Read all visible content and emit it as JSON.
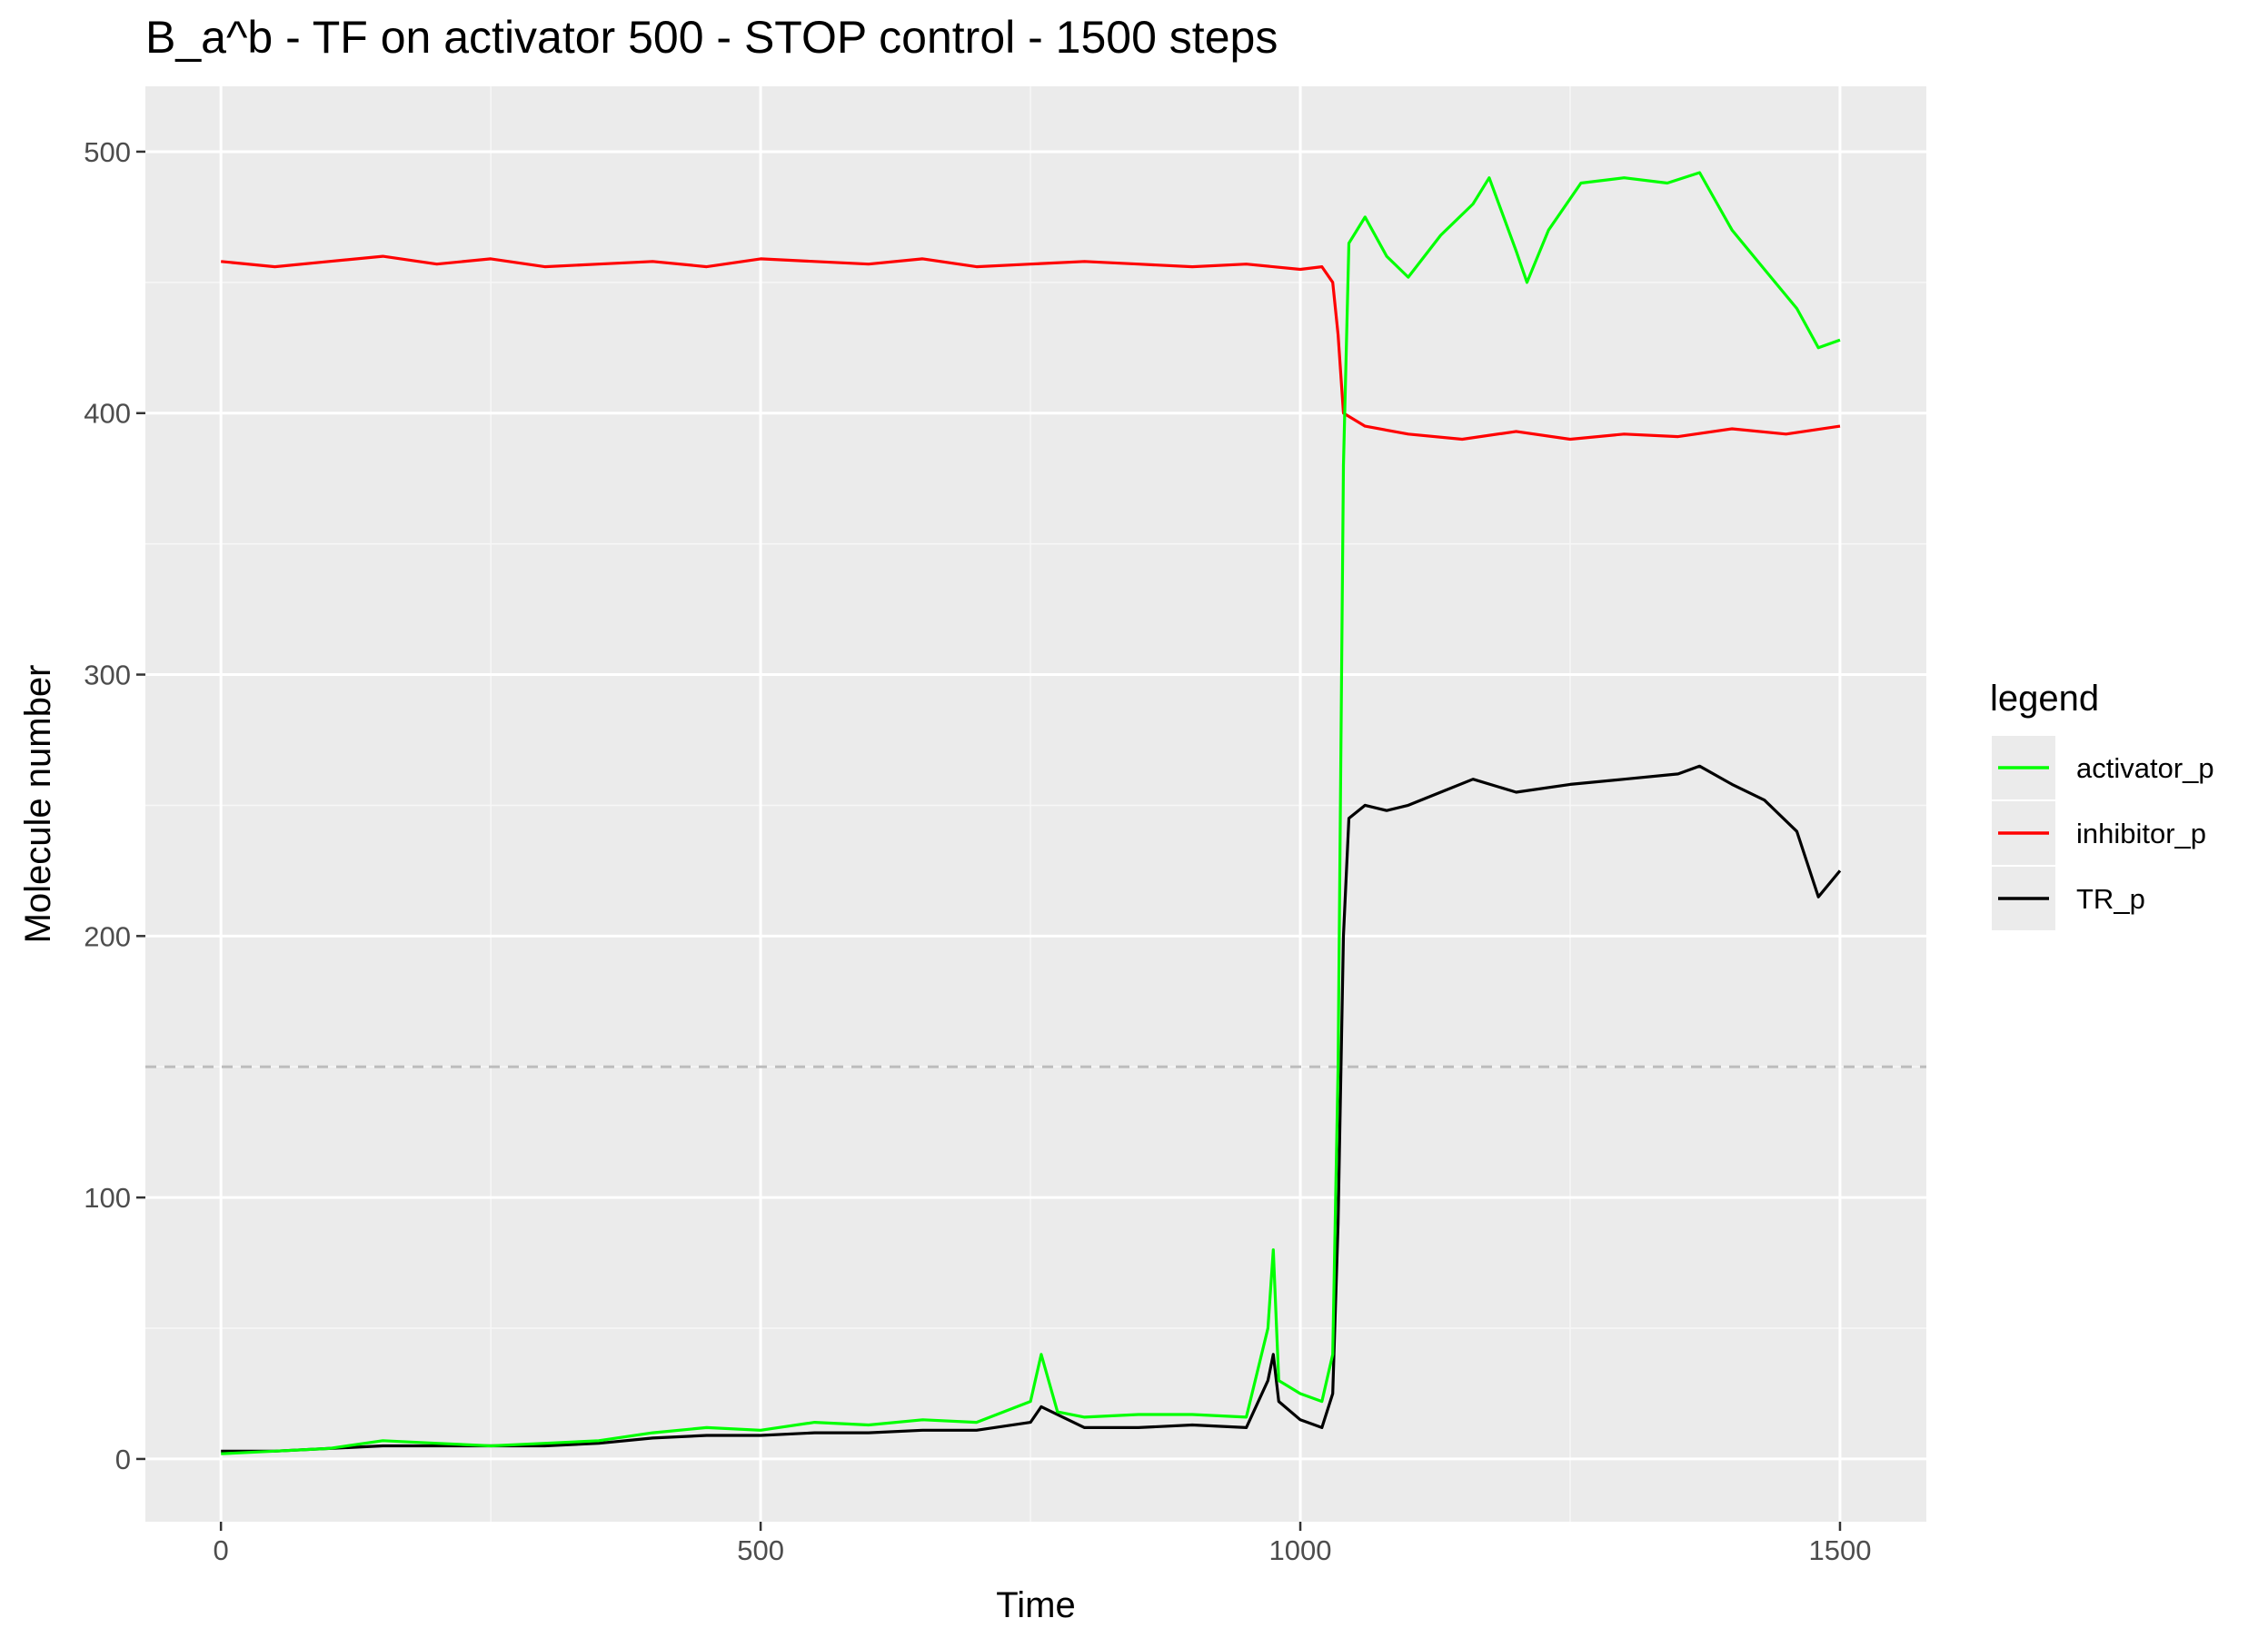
{
  "chart_data": {
    "type": "line",
    "title": "B_a^b - TF on activator 500 - STOP control - 1500 steps",
    "xlabel": "Time",
    "ylabel": "Molecule number",
    "xlim": [
      -70,
      1580
    ],
    "ylim": [
      -24,
      525
    ],
    "x_ticks": [
      0,
      500,
      1000,
      1500
    ],
    "x_tick_labels": [
      "0",
      "500",
      "1000",
      "1500"
    ],
    "y_ticks": [
      0,
      100,
      200,
      300,
      400,
      500
    ],
    "y_tick_labels": [
      "0",
      "100",
      "200",
      "300",
      "400",
      "500"
    ],
    "grid": true,
    "reference_line": {
      "y": 150,
      "style": "dashed",
      "color": "#bdbdbd"
    },
    "legend": {
      "title": "legend",
      "position": "right",
      "entries": [
        {
          "label": "activator_p",
          "color": "#00ff00"
        },
        {
          "label": "inhibitor_p",
          "color": "#ff0000"
        },
        {
          "label": "TR_p",
          "color": "#000000"
        }
      ]
    },
    "series": [
      {
        "name": "activator_p",
        "color": "#00ff00",
        "x": [
          0,
          50,
          100,
          150,
          200,
          250,
          300,
          350,
          400,
          450,
          500,
          550,
          600,
          650,
          700,
          750,
          760,
          775,
          800,
          850,
          900,
          950,
          970,
          975,
          980,
          1000,
          1020,
          1030,
          1035,
          1040,
          1045,
          1060,
          1080,
          1100,
          1130,
          1160,
          1175,
          1200,
          1210,
          1230,
          1260,
          1300,
          1340,
          1370,
          1400,
          1430,
          1460,
          1480,
          1500
        ],
        "y": [
          2,
          3,
          4,
          7,
          6,
          5,
          6,
          7,
          10,
          12,
          11,
          14,
          13,
          15,
          14,
          22,
          40,
          18,
          16,
          17,
          17,
          16,
          50,
          80,
          30,
          25,
          22,
          40,
          150,
          380,
          465,
          475,
          460,
          452,
          468,
          480,
          490,
          462,
          450,
          470,
          488,
          490,
          488,
          492,
          470,
          455,
          440,
          425,
          428
        ]
      },
      {
        "name": "inhibitor_p",
        "color": "#ff0000",
        "x": [
          0,
          50,
          100,
          150,
          200,
          250,
          300,
          350,
          400,
          450,
          500,
          550,
          600,
          650,
          700,
          750,
          800,
          850,
          900,
          950,
          1000,
          1020,
          1030,
          1035,
          1040,
          1060,
          1100,
          1150,
          1200,
          1250,
          1300,
          1350,
          1400,
          1450,
          1500
        ],
        "y": [
          458,
          456,
          458,
          460,
          457,
          459,
          456,
          457,
          458,
          456,
          459,
          458,
          457,
          459,
          456,
          457,
          458,
          457,
          456,
          457,
          455,
          456,
          450,
          430,
          400,
          395,
          392,
          390,
          393,
          390,
          392,
          391,
          394,
          392,
          395
        ]
      },
      {
        "name": "TR_p",
        "color": "#000000",
        "x": [
          0,
          50,
          100,
          150,
          200,
          250,
          300,
          350,
          400,
          450,
          500,
          550,
          600,
          650,
          700,
          750,
          760,
          800,
          850,
          900,
          950,
          970,
          975,
          980,
          1000,
          1020,
          1030,
          1035,
          1040,
          1045,
          1060,
          1080,
          1100,
          1130,
          1160,
          1200,
          1250,
          1300,
          1350,
          1370,
          1400,
          1430,
          1460,
          1480,
          1500
        ],
        "y": [
          3,
          3,
          4,
          5,
          5,
          5,
          5,
          6,
          8,
          9,
          9,
          10,
          10,
          11,
          11,
          14,
          20,
          12,
          12,
          13,
          12,
          30,
          40,
          22,
          15,
          12,
          25,
          90,
          200,
          245,
          250,
          248,
          250,
          255,
          260,
          255,
          258,
          260,
          262,
          265,
          258,
          252,
          240,
          215,
          225
        ]
      }
    ]
  }
}
